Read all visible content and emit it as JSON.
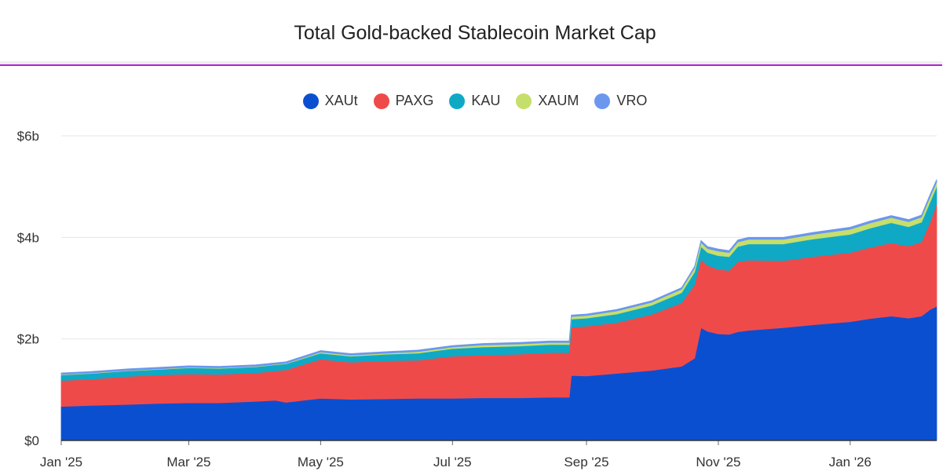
{
  "chart_data": {
    "type": "area",
    "stacked": true,
    "title": "Total Gold-backed Stablecoin Market Cap",
    "xlabel": "",
    "ylabel": "",
    "xlim": [
      "2025-01-01",
      "2026-02-10"
    ],
    "ylim": [
      0,
      6
    ],
    "y_unit": "b",
    "y_ticks": [
      0,
      2,
      4,
      6
    ],
    "y_tick_labels": [
      "$0",
      "$2b",
      "$4b",
      "$6b"
    ],
    "x_ticks": [
      "2025-01-01",
      "2025-03-01",
      "2025-05-01",
      "2025-07-01",
      "2025-09-01",
      "2025-11-01",
      "2026-01-01"
    ],
    "x_tick_labels": [
      "Jan '25",
      "Mar '25",
      "May '25",
      "Jul '25",
      "Sep '25",
      "Nov '25",
      "Jan '26"
    ],
    "grid": true,
    "legend_position": "top-center",
    "x": [
      "2025-01-01",
      "2025-01-15",
      "2025-02-01",
      "2025-02-15",
      "2025-03-01",
      "2025-03-15",
      "2025-04-01",
      "2025-04-10",
      "2025-04-15",
      "2025-05-01",
      "2025-05-15",
      "2025-06-01",
      "2025-06-15",
      "2025-07-01",
      "2025-07-15",
      "2025-08-01",
      "2025-08-15",
      "2025-08-24",
      "2025-08-25",
      "2025-09-01",
      "2025-09-15",
      "2025-10-01",
      "2025-10-15",
      "2025-10-21",
      "2025-10-24",
      "2025-10-27",
      "2025-11-01",
      "2025-11-06",
      "2025-11-10",
      "2025-11-15",
      "2025-12-01",
      "2025-12-15",
      "2026-01-01",
      "2026-01-10",
      "2026-01-20",
      "2026-01-28",
      "2026-02-03",
      "2026-02-07",
      "2026-02-10"
    ],
    "series": [
      {
        "name": "XAUt",
        "color": "#0b4fd1",
        "values": [
          0.67,
          0.69,
          0.71,
          0.73,
          0.74,
          0.74,
          0.77,
          0.79,
          0.75,
          0.83,
          0.81,
          0.82,
          0.83,
          0.83,
          0.84,
          0.84,
          0.85,
          0.85,
          1.28,
          1.27,
          1.32,
          1.38,
          1.46,
          1.62,
          2.22,
          2.15,
          2.1,
          2.09,
          2.14,
          2.17,
          2.22,
          2.28,
          2.34,
          2.4,
          2.45,
          2.41,
          2.45,
          2.58,
          2.64
        ]
      },
      {
        "name": "PAXG",
        "color": "#ef4a4a",
        "values": [
          0.51,
          0.52,
          0.55,
          0.56,
          0.57,
          0.56,
          0.56,
          0.58,
          0.64,
          0.77,
          0.73,
          0.75,
          0.75,
          0.83,
          0.84,
          0.86,
          0.88,
          0.88,
          0.95,
          0.98,
          1.0,
          1.1,
          1.25,
          1.45,
          1.35,
          1.3,
          1.27,
          1.26,
          1.38,
          1.38,
          1.32,
          1.34,
          1.36,
          1.4,
          1.44,
          1.42,
          1.46,
          1.72,
          2.02
        ]
      },
      {
        "name": "KAU",
        "color": "#0fa9c6",
        "values": [
          0.11,
          0.11,
          0.11,
          0.11,
          0.12,
          0.12,
          0.12,
          0.12,
          0.12,
          0.12,
          0.12,
          0.13,
          0.14,
          0.15,
          0.16,
          0.16,
          0.16,
          0.16,
          0.16,
          0.16,
          0.17,
          0.18,
          0.2,
          0.25,
          0.25,
          0.25,
          0.27,
          0.27,
          0.3,
          0.32,
          0.33,
          0.35,
          0.36,
          0.38,
          0.4,
          0.38,
          0.39,
          0.4,
          0.34
        ]
      },
      {
        "name": "XAUM",
        "color": "#c6df6a",
        "values": [
          0.01,
          0.01,
          0.01,
          0.01,
          0.01,
          0.01,
          0.01,
          0.01,
          0.01,
          0.02,
          0.02,
          0.02,
          0.03,
          0.03,
          0.04,
          0.04,
          0.04,
          0.04,
          0.05,
          0.05,
          0.06,
          0.06,
          0.07,
          0.08,
          0.08,
          0.08,
          0.09,
          0.08,
          0.09,
          0.09,
          0.09,
          0.09,
          0.1,
          0.1,
          0.1,
          0.1,
          0.1,
          0.1,
          0.09
        ]
      },
      {
        "name": "VRO",
        "color": "#6b97ef",
        "values": [
          0.03,
          0.03,
          0.03,
          0.03,
          0.03,
          0.03,
          0.03,
          0.03,
          0.03,
          0.03,
          0.03,
          0.03,
          0.03,
          0.03,
          0.03,
          0.03,
          0.03,
          0.03,
          0.03,
          0.03,
          0.03,
          0.03,
          0.03,
          0.03,
          0.04,
          0.04,
          0.04,
          0.04,
          0.04,
          0.04,
          0.04,
          0.04,
          0.04,
          0.04,
          0.04,
          0.04,
          0.04,
          0.05,
          0.05
        ]
      }
    ]
  }
}
